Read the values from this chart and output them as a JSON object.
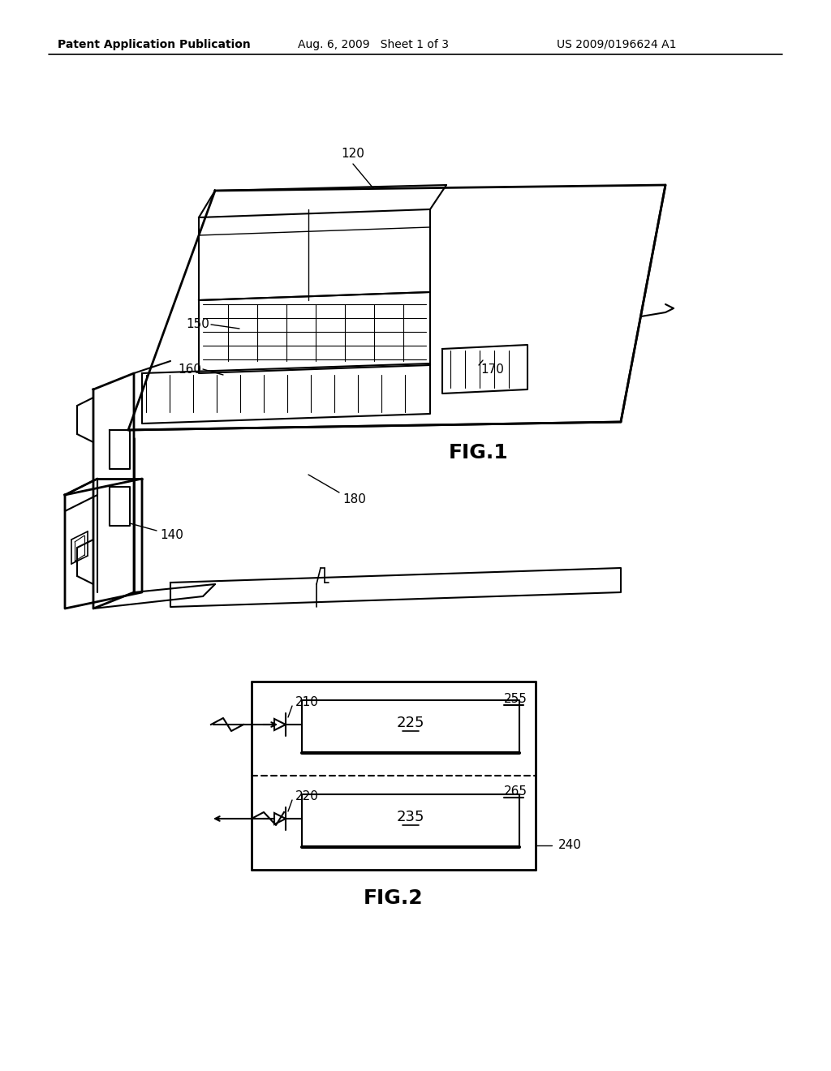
{
  "background_color": "#ffffff",
  "header_left": "Patent Application Publication",
  "header_mid": "Aug. 6, 2009   Sheet 1 of 3",
  "header_right": "US 2009/0196624 A1",
  "fig1_label": "FIG.1",
  "fig2_label": "FIG.2",
  "label_120": "120",
  "label_150": "150",
  "label_160": "160",
  "label_170": "170",
  "label_180": "180",
  "label_140": "140",
  "label_210": "210",
  "label_220": "220",
  "label_225": "225",
  "label_235": "235",
  "label_240": "240",
  "label_255": "255",
  "label_265": "265",
  "line_color": "#000000",
  "text_color": "#000000"
}
